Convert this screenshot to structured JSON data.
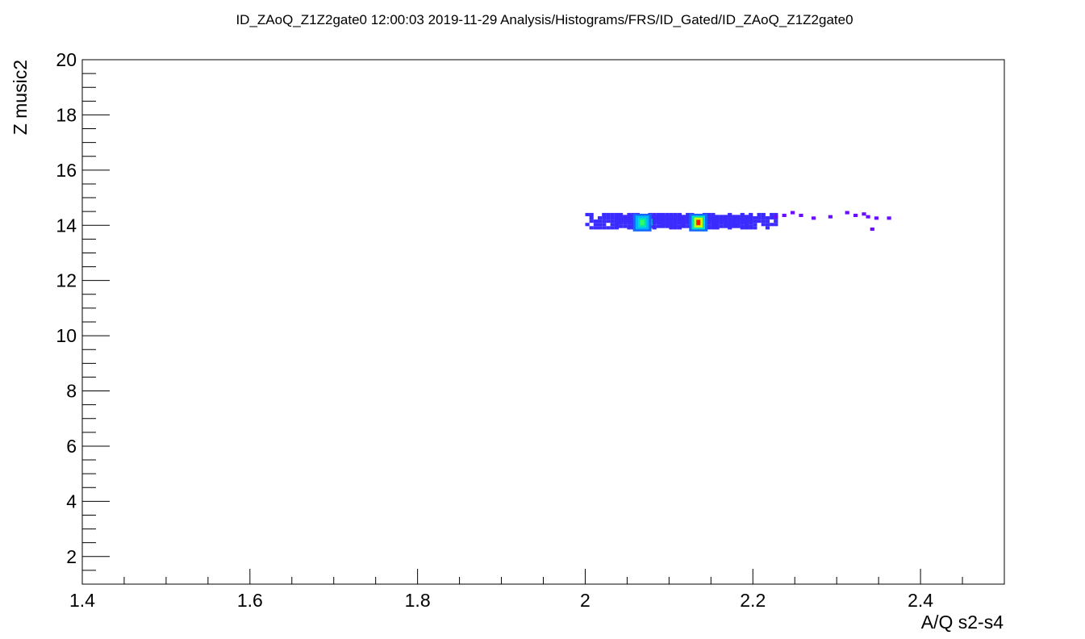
{
  "chart_data": {
    "type": "heatmap",
    "title": "ID_ZAoQ_Z1Z2gate0  12:00:03  2019-11-29  Analysis/Histograms/FRS/ID_Gated/ID_ZAoQ_Z1Z2gate0",
    "xlabel": "A/Q s2-s4",
    "ylabel": "Z music2",
    "xlim": [
      1.4,
      2.5
    ],
    "ylim": [
      1,
      20
    ],
    "x_major_ticks": [
      1.4,
      1.6,
      1.8,
      2.0,
      2.2,
      2.4
    ],
    "x_tick_labels": [
      "1.4",
      "1.6",
      "1.8",
      "2",
      "2.2",
      "2.4"
    ],
    "x_minor_step": 0.05,
    "y_major_ticks": [
      2,
      4,
      6,
      8,
      10,
      12,
      14,
      16,
      18,
      20
    ],
    "y_tick_labels": [
      "2",
      "4",
      "6",
      "8",
      "10",
      "12",
      "14",
      "16",
      "18",
      "20"
    ],
    "y_minor_step": 0.5,
    "grid": false,
    "legend": "none",
    "colorscale": [
      "#6a0dff",
      "#3b2bff",
      "#1565ff",
      "#00b4ff",
      "#00e0c0",
      "#30ff60",
      "#c8ff00",
      "#ff9900",
      "#ff1a00"
    ],
    "regions": [
      {
        "x": [
          2.0,
          2.23
        ],
        "y": [
          13.85,
          14.4
        ],
        "level": 0.08
      },
      {
        "x": [
          2.035,
          2.2
        ],
        "y": [
          13.9,
          14.35
        ],
        "level": 0.14
      },
      {
        "x": [
          2.06,
          2.08
        ],
        "y": [
          14.0,
          14.2
        ],
        "level": 0.55
      },
      {
        "x": [
          2.125,
          2.145
        ],
        "y": [
          14.0,
          14.2
        ],
        "level": 0.85
      }
    ],
    "sparse_points": [
      {
        "x": 2.225,
        "y": 14.25
      },
      {
        "x": 2.235,
        "y": 14.3
      },
      {
        "x": 2.245,
        "y": 14.4
      },
      {
        "x": 2.255,
        "y": 14.3
      },
      {
        "x": 2.27,
        "y": 14.2
      },
      {
        "x": 2.29,
        "y": 14.25
      },
      {
        "x": 2.31,
        "y": 14.4
      },
      {
        "x": 2.32,
        "y": 14.3
      },
      {
        "x": 2.33,
        "y": 14.35
      },
      {
        "x": 2.335,
        "y": 14.25
      },
      {
        "x": 2.345,
        "y": 14.2
      },
      {
        "x": 2.36,
        "y": 14.2
      },
      {
        "x": 2.34,
        "y": 13.8
      }
    ],
    "hotspots": [
      {
        "x": 2.068,
        "y": 14.1,
        "level": 0.6
      },
      {
        "x": 2.135,
        "y": 14.1,
        "level": 1.0
      }
    ]
  }
}
